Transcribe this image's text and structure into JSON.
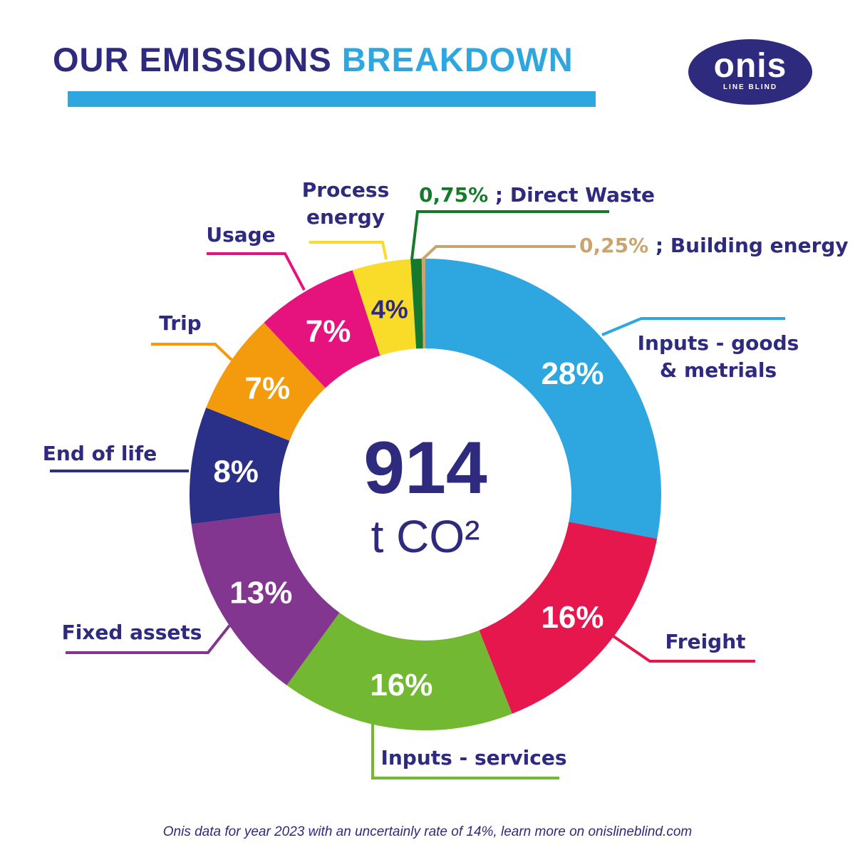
{
  "header": {
    "title_part1": "OUR EMISSIONS ",
    "title_part2": "BREAKDOWN",
    "logo_word": "onis",
    "logo_sub": "LINE BLIND"
  },
  "center": {
    "total": "914",
    "unit": "t CO²"
  },
  "footer": "Onis data for year 2023 with an uncertainly rate of 14%, learn more on onislineblind.com",
  "chart_data": {
    "type": "pie",
    "donut": true,
    "slices": [
      {
        "name": "Inputs - goods & metrials",
        "label_lines": [
          "Inputs - goods",
          "& metrials"
        ],
        "value": 28,
        "pct_label": "28%",
        "color": "#2ea7e0",
        "label_color": "#2e2a7e"
      },
      {
        "name": "Freight",
        "label_lines": [
          "Freight"
        ],
        "value": 16,
        "pct_label": "16%",
        "color": "#e5174d",
        "label_color": "#2e2a7e"
      },
      {
        "name": "Inputs - services",
        "label_lines": [
          "Inputs - services"
        ],
        "value": 16,
        "pct_label": "16%",
        "color": "#72b832",
        "label_color": "#2e2a7e"
      },
      {
        "name": "Fixed assets",
        "label_lines": [
          "Fixed assets"
        ],
        "value": 13,
        "pct_label": "13%",
        "color": "#823690",
        "label_color": "#2e2a7e"
      },
      {
        "name": "End of life",
        "label_lines": [
          "End of life"
        ],
        "value": 8,
        "pct_label": "8%",
        "color": "#2a3088",
        "label_color": "#2e2a7e"
      },
      {
        "name": "Trip",
        "label_lines": [
          "Trip"
        ],
        "value": 7,
        "pct_label": "7%",
        "color": "#f49b0d",
        "label_color": "#2e2a7e"
      },
      {
        "name": "Usage",
        "label_lines": [
          "Usage"
        ],
        "value": 7,
        "pct_label": "7%",
        "color": "#e6137f",
        "label_color": "#2e2a7e"
      },
      {
        "name": "Process energy",
        "label_lines": [
          "Process",
          "energy"
        ],
        "value": 4,
        "pct_label": "4%",
        "color": "#f9dc2a",
        "label_color": "#2e2a7e"
      },
      {
        "name": "Direct Waste",
        "label_lines": [
          "0,75%",
          " ; Direct Waste"
        ],
        "value": 0.75,
        "pct_label": "",
        "color": "#157a2b",
        "label_color": "#157a2b"
      },
      {
        "name": "Building energy",
        "label_lines": [
          "0,25%",
          " ; Building energy"
        ],
        "value": 0.25,
        "pct_label": "",
        "color": "#c9a46c",
        "label_color": "#c9a46c"
      }
    ]
  }
}
